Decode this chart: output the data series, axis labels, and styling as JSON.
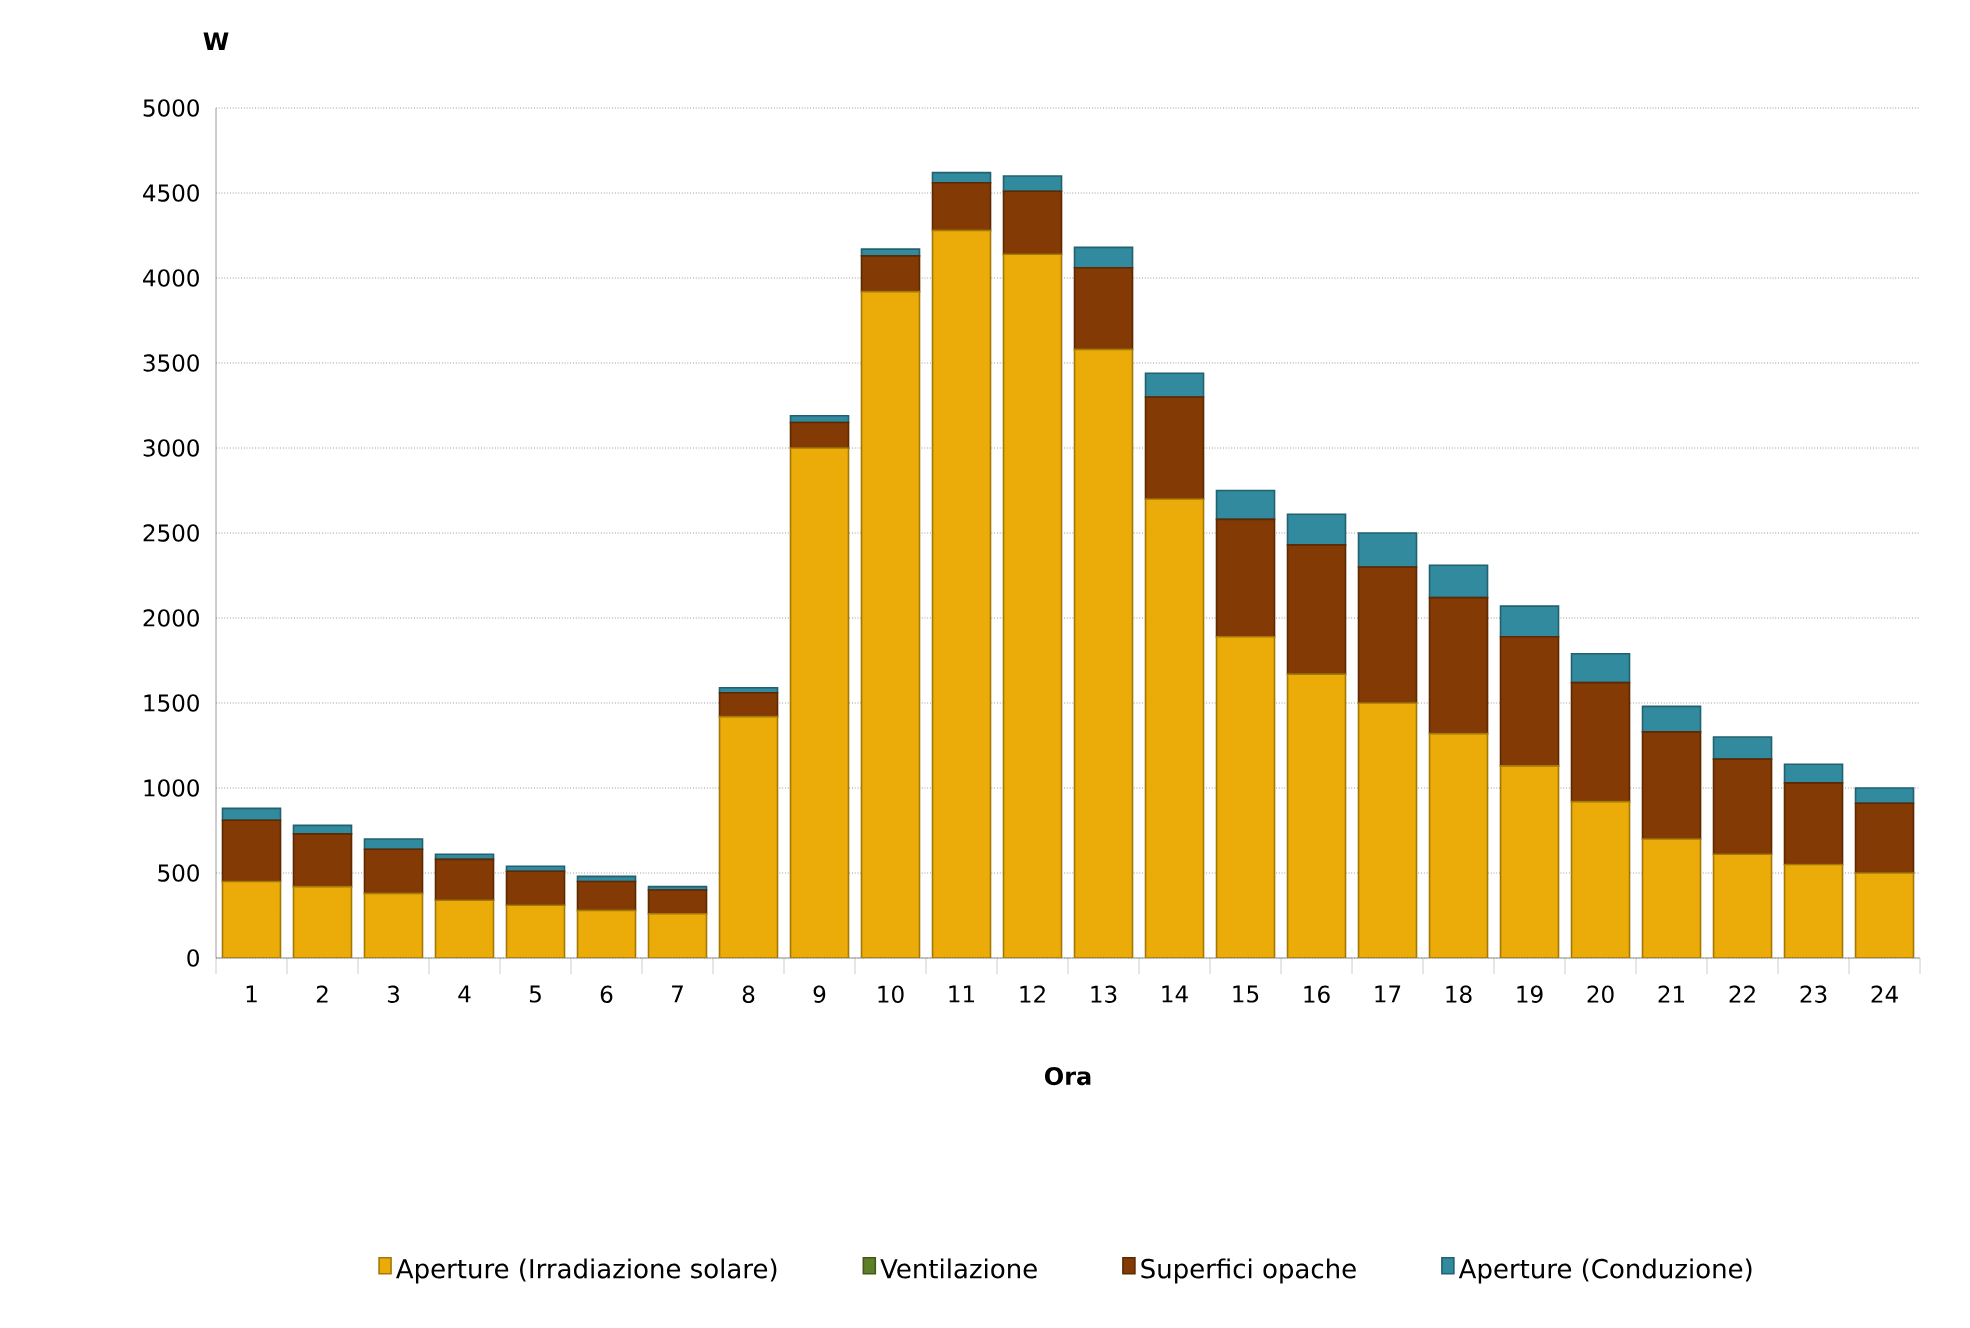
{
  "chart_data": {
    "type": "bar",
    "stacked": true,
    "xlabel": "Ora",
    "ylabel": "W",
    "categories": [
      "1",
      "2",
      "3",
      "4",
      "5",
      "6",
      "7",
      "8",
      "9",
      "10",
      "11",
      "12",
      "13",
      "14",
      "15",
      "16",
      "17",
      "18",
      "19",
      "20",
      "21",
      "22",
      "23",
      "24"
    ],
    "series": [
      {
        "name": "Aperture (Irradiazione solare)",
        "color": "#ebab08",
        "values": [
          450,
          420,
          380,
          340,
          310,
          280,
          260,
          1420,
          3000,
          3920,
          4280,
          4140,
          3580,
          2700,
          1890,
          1670,
          1500,
          1320,
          1130,
          920,
          700,
          610,
          550,
          500
        ]
      },
      {
        "name": "Ventilazione",
        "color": "#5f7f27",
        "values": [
          0,
          0,
          0,
          0,
          0,
          0,
          0,
          0,
          0,
          0,
          0,
          0,
          0,
          0,
          0,
          0,
          0,
          0,
          0,
          0,
          0,
          0,
          0,
          0
        ]
      },
      {
        "name": "Superfici opache",
        "color": "#833a05",
        "values": [
          360,
          310,
          260,
          240,
          200,
          170,
          140,
          140,
          150,
          210,
          280,
          370,
          480,
          600,
          690,
          760,
          800,
          800,
          760,
          700,
          630,
          560,
          480,
          410
        ]
      },
      {
        "name": "Aperture (Conduzione)",
        "color": "#318a9e",
        "values": [
          70,
          50,
          60,
          30,
          30,
          30,
          20,
          30,
          40,
          40,
          60,
          90,
          120,
          140,
          170,
          180,
          200,
          190,
          180,
          170,
          150,
          130,
          110,
          90
        ]
      }
    ],
    "ylim": [
      0,
      5000
    ],
    "yticks": [
      0,
      500,
      1000,
      1500,
      2000,
      2500,
      3000,
      3500,
      4000,
      4500,
      5000
    ],
    "grid": "y",
    "legend": "bottom"
  }
}
